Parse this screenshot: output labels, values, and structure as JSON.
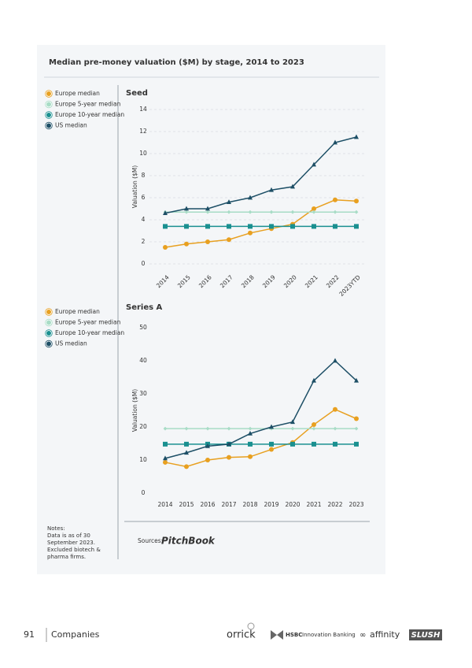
{
  "title": "Median pre-money valuation ($M) by stage, 2014 to 2023",
  "chart_data": [
    {
      "type": "line",
      "title": "Seed",
      "y_label": "Valuation ($M)",
      "categories": [
        "2014",
        "2015",
        "2016",
        "2017",
        "2018",
        "2019",
        "2020",
        "2021",
        "2022",
        "2023YTD"
      ],
      "xtick_rotation": -45,
      "ylim": [
        0,
        14
      ],
      "yticks": [
        0,
        2,
        4,
        6,
        8,
        10,
        12,
        14
      ],
      "grid": true,
      "series": [
        {
          "name": "Europe median",
          "color": "#e8a020",
          "marker": "circle",
          "values": [
            1.5,
            1.8,
            2.0,
            2.2,
            2.8,
            3.2,
            3.6,
            5.0,
            5.8,
            5.7
          ]
        },
        {
          "name": "Europe 5-year median",
          "color": "#a8dcc6",
          "marker": "diamond",
          "values": [
            4.7,
            4.7,
            4.7,
            4.7,
            4.7,
            4.7,
            4.7,
            4.7,
            4.7,
            4.7
          ]
        },
        {
          "name": "Europe 10-year median",
          "color": "#1a9090",
          "marker": "square",
          "values": [
            3.4,
            3.4,
            3.4,
            3.4,
            3.4,
            3.4,
            3.4,
            3.4,
            3.4,
            3.4
          ]
        },
        {
          "name": "US median",
          "color": "#1d4f66",
          "marker": "triangle",
          "values": [
            4.6,
            5.0,
            5.0,
            5.6,
            6.0,
            6.7,
            7.0,
            9.0,
            11.0,
            11.5
          ]
        }
      ]
    },
    {
      "type": "line",
      "title": "Series A",
      "y_label": "Valuation ($M)",
      "categories": [
        "2014",
        "2015",
        "2016",
        "2017",
        "2018",
        "2019",
        "2020",
        "2021",
        "2022",
        "2023"
      ],
      "xtick_rotation": 0,
      "ylim": [
        0,
        50
      ],
      "yticks": [
        0,
        10,
        20,
        30,
        40,
        50
      ],
      "grid": false,
      "series": [
        {
          "name": "Europe median",
          "color": "#e8a020",
          "marker": "circle",
          "values": [
            9.3,
            8.0,
            10.0,
            10.8,
            11.0,
            13.2,
            15.3,
            20.7,
            25.3,
            22.5
          ]
        },
        {
          "name": "Europe 5-year median",
          "color": "#a8dcc6",
          "marker": "diamond",
          "values": [
            19.5,
            19.5,
            19.5,
            19.5,
            19.5,
            19.5,
            19.5,
            19.5,
            19.5,
            19.5
          ]
        },
        {
          "name": "Europe 10-year median",
          "color": "#1a9090",
          "marker": "square",
          "values": [
            14.8,
            14.8,
            14.8,
            14.8,
            14.8,
            14.8,
            14.8,
            14.8,
            14.8,
            14.8
          ]
        },
        {
          "name": "US median",
          "color": "#1d4f66",
          "marker": "triangle",
          "values": [
            10.5,
            12.2,
            14.2,
            14.8,
            18.0,
            20.0,
            21.5,
            34.0,
            40.0,
            34.0
          ]
        }
      ]
    }
  ],
  "notes": [
    "Notes:",
    "Data is as of 30",
    "September 2023.",
    "Excluded biotech &",
    "pharma firms."
  ],
  "sources_label": "Sources:",
  "source": "PitchBook",
  "footer": {
    "page": "91",
    "section": "Companies",
    "partners": [
      "orrick",
      "HSBC",
      "Innovation Banking",
      "affinity",
      "SLUSH"
    ]
  }
}
